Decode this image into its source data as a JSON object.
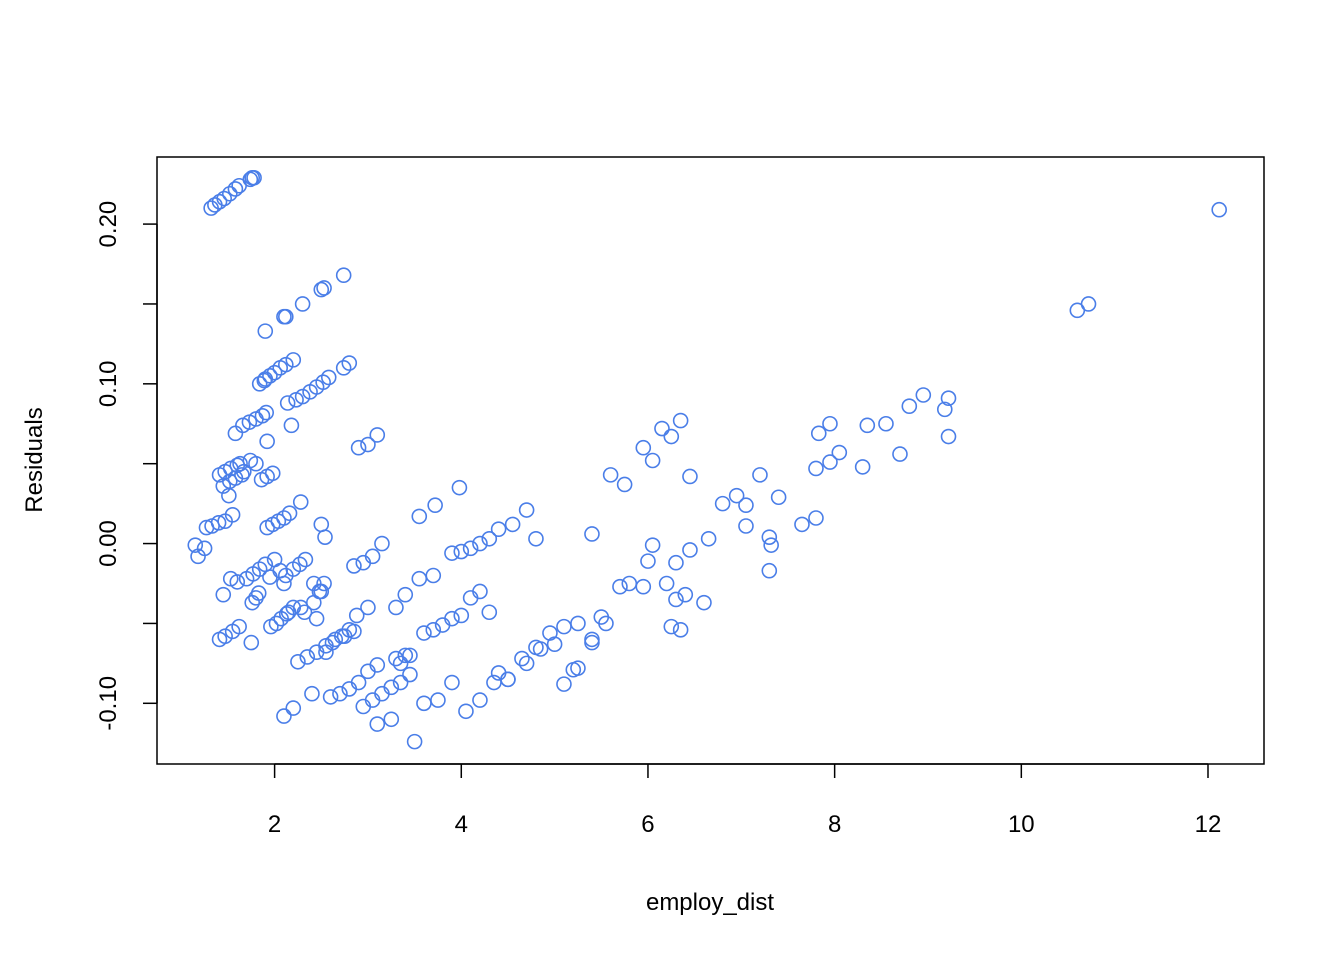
{
  "chart_data": {
    "type": "scatter",
    "title": "",
    "xlabel": "employ_dist",
    "ylabel": "Residuals",
    "xlim": [
      0.74,
      12.6
    ],
    "ylim": [
      -0.138,
      0.242
    ],
    "xticks": [
      "2",
      "4",
      "6",
      "8",
      "10",
      "12"
    ],
    "yticks": [
      "-0.10",
      "0.00",
      "0.10",
      "0.20"
    ],
    "grid": false,
    "legend": "none",
    "point_color": "#4a7ee8",
    "series": [
      {
        "x": [
          1.32,
          1.36,
          1.41,
          1.46,
          1.52,
          1.58,
          1.62,
          1.74,
          1.76,
          1.78,
          1.9,
          2.12,
          2.3,
          2.5,
          2.53,
          2.74,
          2.1,
          1.84,
          1.89,
          1.95,
          2.0,
          2.06,
          2.12,
          2.2,
          1.9,
          2.14,
          2.23,
          2.3,
          2.38,
          2.45,
          2.52,
          2.58,
          2.74,
          2.8,
          1.58,
          1.66,
          1.73,
          1.8,
          1.87,
          1.91,
          1.41,
          1.47,
          1.53,
          1.6,
          1.67,
          1.74,
          1.8,
          1.86,
          1.92,
          1.98,
          1.45,
          1.52,
          1.58,
          1.65,
          1.92,
          2.18,
          2.9,
          3.0,
          3.1,
          1.27,
          1.33,
          1.4,
          1.47,
          1.55,
          1.15,
          1.18,
          1.25,
          1.92,
          1.98,
          2.04,
          2.1,
          2.16,
          2.28,
          1.51,
          1.63,
          2.5,
          2.54,
          1.53,
          1.6,
          1.7,
          1.77,
          1.84,
          1.9,
          1.95,
          2.0,
          2.06,
          2.12,
          2.2,
          2.27,
          2.33,
          2.42,
          2.48,
          2.53,
          1.45,
          1.76,
          1.8,
          1.83,
          2.1,
          2.15,
          2.28,
          2.42,
          2.5,
          1.41,
          1.47,
          1.55,
          1.62,
          1.75,
          1.96,
          2.02,
          2.07,
          2.13,
          2.2,
          2.32,
          2.45,
          2.55,
          2.62,
          2.72,
          2.8,
          2.88,
          3.0,
          2.25,
          2.35,
          2.45,
          2.55,
          2.65,
          2.75,
          2.85,
          2.95,
          3.05,
          3.15,
          3.25,
          3.35,
          3.45,
          2.1,
          2.2,
          2.4,
          2.6,
          2.7,
          2.8,
          2.9,
          3.0,
          3.1,
          3.3,
          3.4,
          3.5,
          3.1,
          3.25,
          3.35,
          3.45,
          3.6,
          3.7,
          3.8,
          3.9,
          4.0,
          4.1,
          4.2,
          4.3,
          4.4,
          4.5,
          4.7,
          4.85,
          5.0,
          5.2,
          3.6,
          3.75,
          3.9,
          4.05,
          4.2,
          4.35,
          4.5,
          4.65,
          4.8,
          4.95,
          5.1,
          5.25,
          5.4,
          5.5,
          3.3,
          3.4,
          3.55,
          3.7,
          3.9,
          4.0,
          4.1,
          4.2,
          4.3,
          4.4,
          4.55,
          4.7,
          4.8,
          2.85,
          2.95,
          3.05,
          3.15,
          3.55,
          3.72,
          3.98,
          5.1,
          5.25,
          5.4,
          5.55,
          5.7,
          5.8,
          5.95,
          6.05,
          6.2,
          6.3,
          6.4,
          5.4,
          5.6,
          5.75,
          5.95,
          6.05,
          6.15,
          6.25,
          6.35,
          6.0,
          6.25,
          6.35,
          6.45,
          6.6,
          6.3,
          6.45,
          6.65,
          6.8,
          6.95,
          7.05,
          7.2,
          7.4,
          7.3,
          7.32,
          7.3,
          7.05,
          7.65,
          7.8,
          7.8,
          7.95,
          8.05,
          8.35,
          8.55,
          8.8,
          8.95,
          9.18,
          9.22,
          9.22,
          8.3,
          8.7,
          7.95,
          7.83,
          10.6,
          10.72,
          12.12
        ]
      }
    ]
  }
}
